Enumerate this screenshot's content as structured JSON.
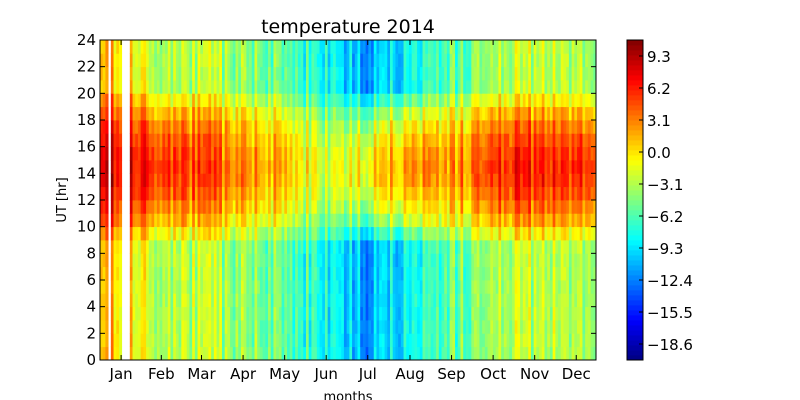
{
  "chart_data": {
    "type": "heatmap",
    "title": "temperature 2014",
    "xlabel": "months",
    "ylabel": "UT [hr]",
    "x_tick_labels": [
      "Jan",
      "Feb",
      "Mar",
      "Apr",
      "May",
      "Jun",
      "Jul",
      "Aug",
      "Sep",
      "Oct",
      "Nov",
      "Dec"
    ],
    "y_ticks": [
      0,
      2,
      4,
      6,
      8,
      10,
      12,
      14,
      16,
      18,
      20,
      22,
      24
    ],
    "ylim": [
      0,
      24
    ],
    "xlim_days": [
      1,
      365
    ],
    "colorbar": {
      "colormap": "jet",
      "range": [
        -20.15,
        10.85
      ],
      "tick_labels": [
        "9.3",
        "6.2",
        "3.1",
        "0.0",
        "−3.1",
        "−6.2",
        "−9.3",
        "−12.4",
        "−15.5",
        "−18.6"
      ],
      "tick_values": [
        9.3,
        6.2,
        3.1,
        0.0,
        -3.1,
        -6.2,
        -9.3,
        -12.4,
        -15.5,
        -18.6
      ]
    },
    "hourly_pattern": {
      "day_hours_ut": [
        9,
        20
      ],
      "night_value_approx": -4,
      "day_peak_hour_ut": 14
    },
    "data_gaps_days": [
      [
        7,
        8
      ],
      [
        16,
        22
      ]
    ],
    "monthly_daytime_peak_approx": [
      {
        "month": "Jan",
        "value": 8
      },
      {
        "month": "Feb",
        "value": 6
      },
      {
        "month": "Mar",
        "value": 5
      },
      {
        "month": "Apr",
        "value": 3
      },
      {
        "month": "May",
        "value": 1
      },
      {
        "month": "Jun",
        "value": -2
      },
      {
        "month": "Jul",
        "value": 0
      },
      {
        "month": "Aug",
        "value": 3
      },
      {
        "month": "Sep",
        "value": 2
      },
      {
        "month": "Oct",
        "value": 6
      },
      {
        "month": "Nov",
        "value": 6
      },
      {
        "month": "Dec",
        "value": 6
      }
    ],
    "monthly_night_value_approx": [
      {
        "month": "Jan",
        "value": 1
      },
      {
        "month": "Feb",
        "value": -3
      },
      {
        "month": "Mar",
        "value": -3
      },
      {
        "month": "Apr",
        "value": -4
      },
      {
        "month": "May",
        "value": -6
      },
      {
        "month": "Jun",
        "value": -8
      },
      {
        "month": "Jul",
        "value": -11
      },
      {
        "month": "Aug",
        "value": -8
      },
      {
        "month": "Sep",
        "value": -6
      },
      {
        "month": "Oct",
        "value": -3
      },
      {
        "month": "Nov",
        "value": -3
      },
      {
        "month": "Dec",
        "value": -3
      }
    ]
  }
}
